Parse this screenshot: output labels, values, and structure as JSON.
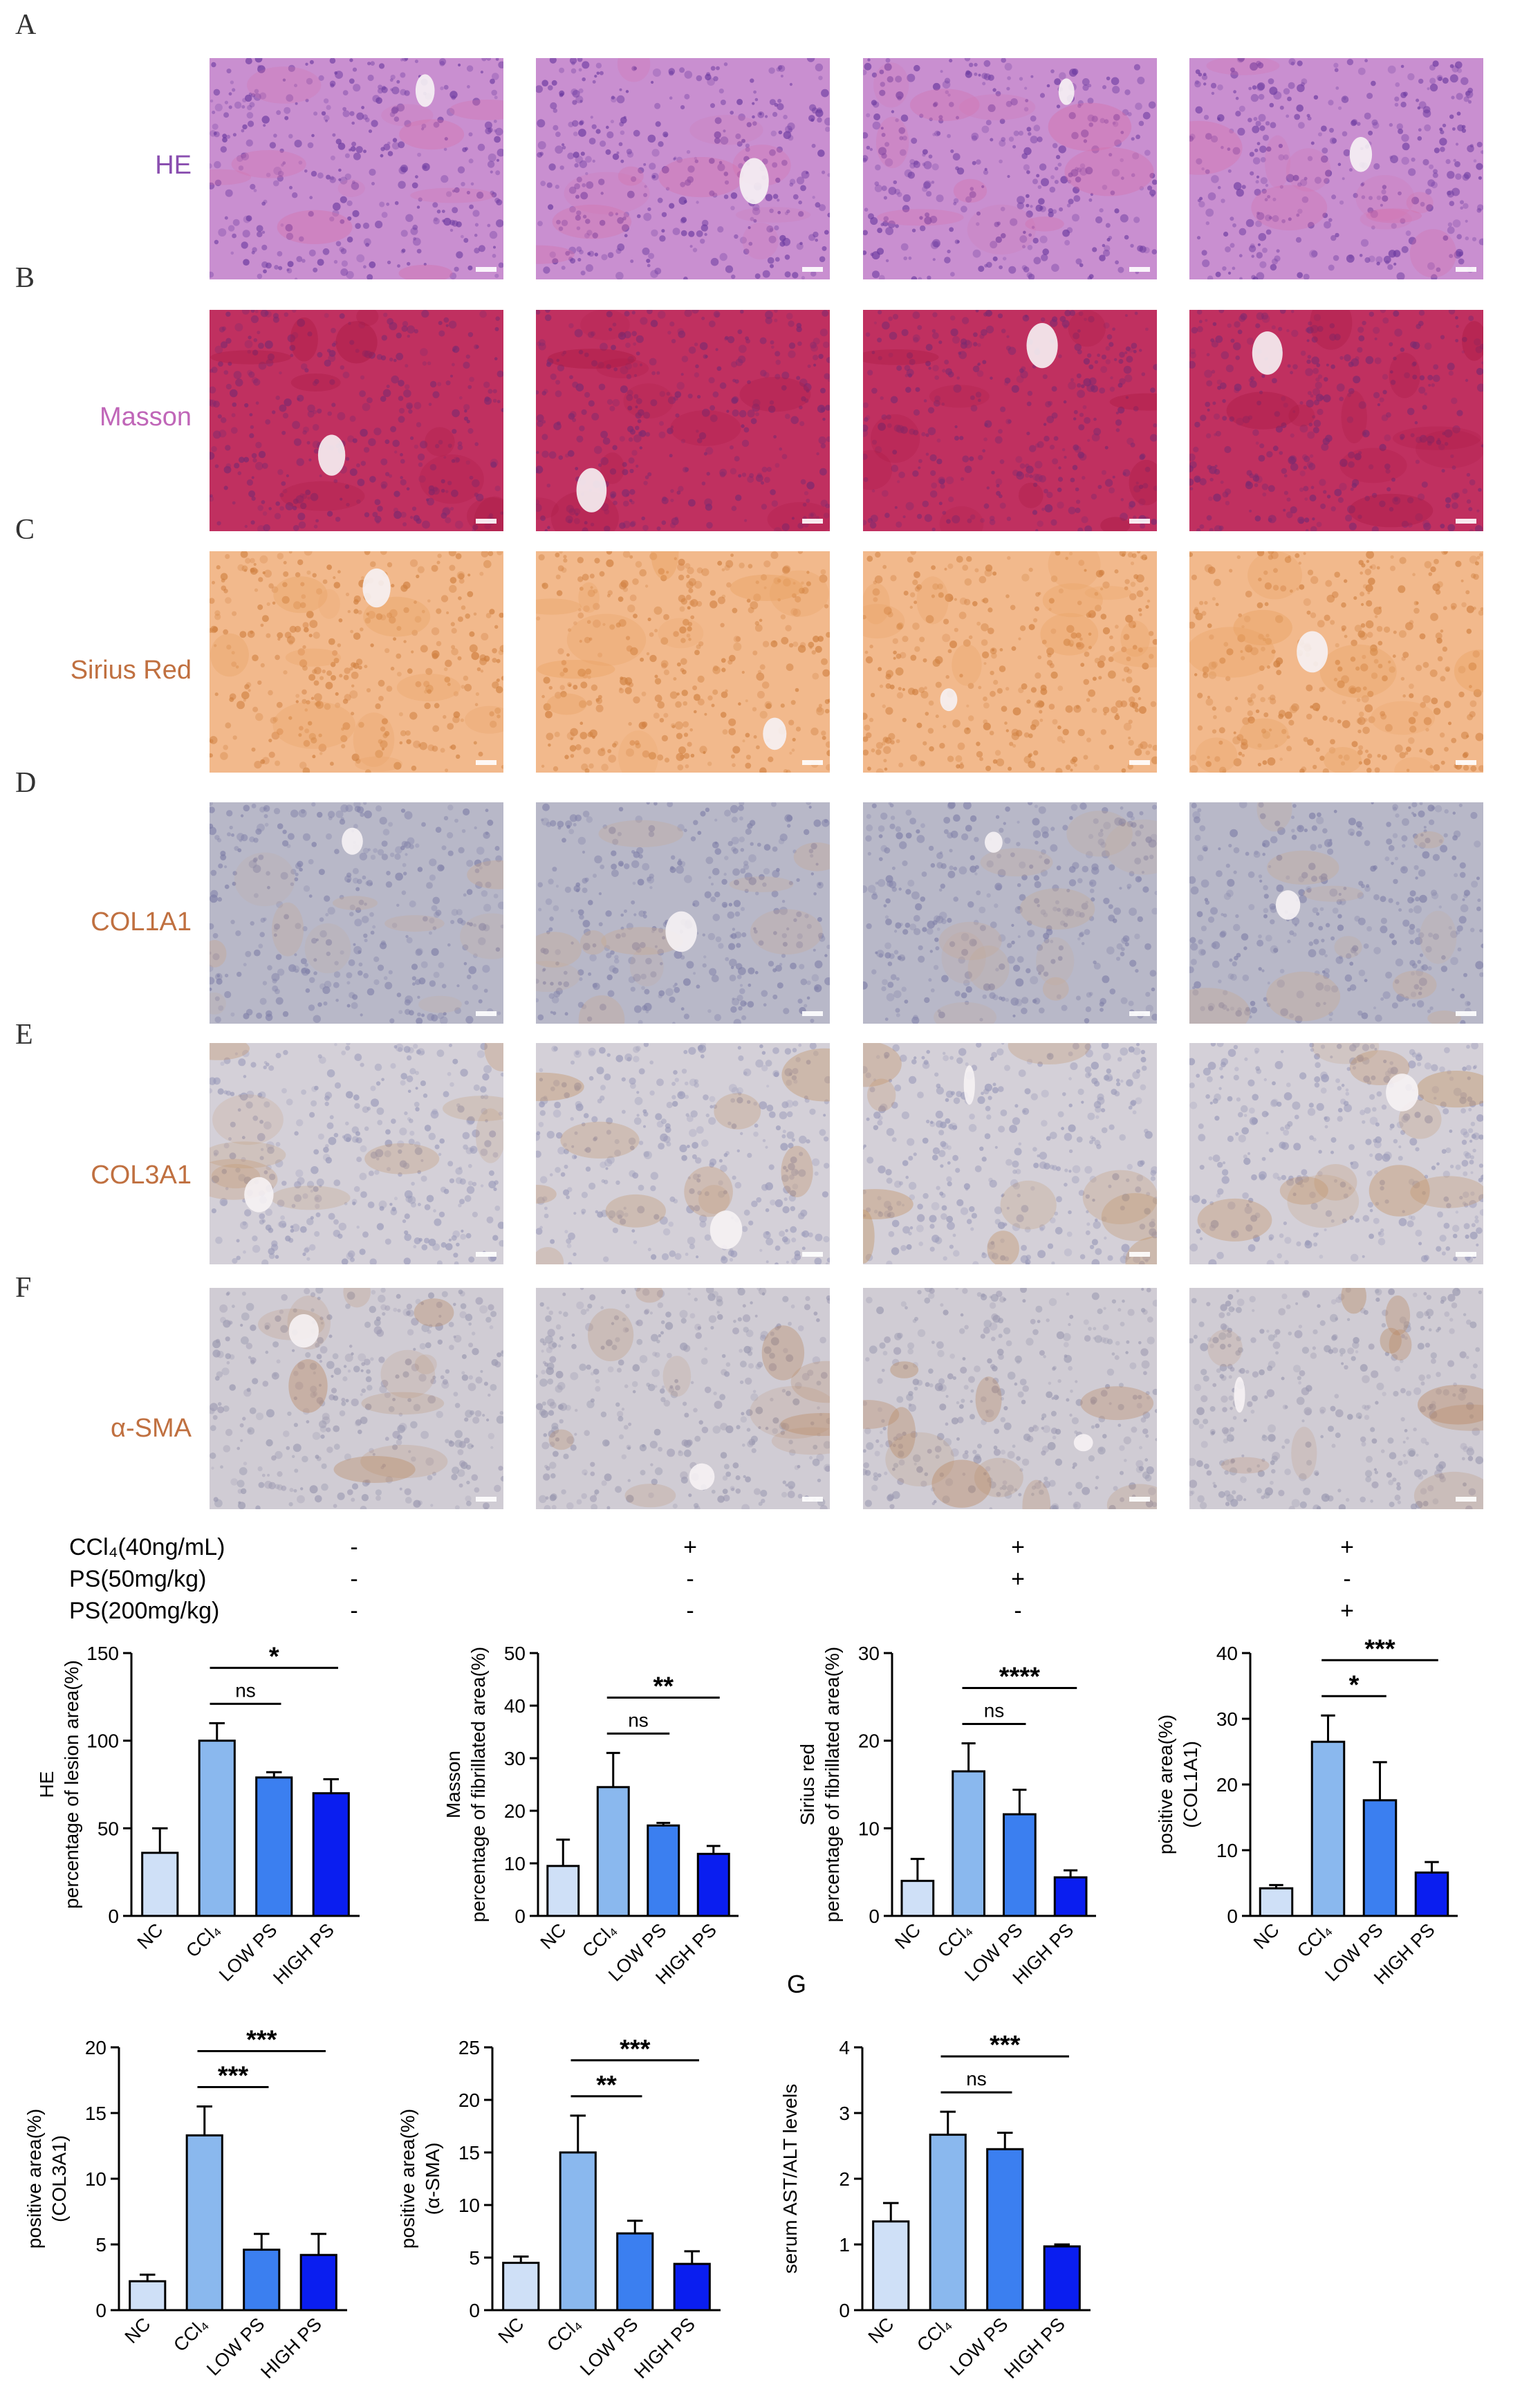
{
  "panel_letters": [
    "A",
    "B",
    "C",
    "D",
    "E",
    "F"
  ],
  "stains": [
    {
      "name": "HE",
      "color": "#8a4fb0",
      "tissue": [
        "#c98fd0",
        "#6b3aa0",
        "#d66fa8"
      ]
    },
    {
      "name": "Masson",
      "color": "#c066b8",
      "tissue": [
        "#c03060",
        "#7a2a70",
        "#a81840"
      ]
    },
    {
      "name": "Sirius Red",
      "color": "#c07040",
      "tissue": [
        "#f2b98c",
        "#d08040",
        "#e8a060"
      ]
    },
    {
      "name": "COL1A1",
      "color": "#c07040",
      "tissue": [
        "#b8b8c8",
        "#8080a8",
        "#c8a890"
      ]
    },
    {
      "name": "COL3A1",
      "color": "#c07040",
      "tissue": [
        "#d4d0d8",
        "#9898b8",
        "#c09060"
      ]
    },
    {
      "name": "α-SMA",
      "color": "#c07040",
      "tissue": [
        "#d0ccd4",
        "#9a98b0",
        "#b88860"
      ]
    }
  ],
  "conditions": {
    "rows": [
      {
        "label": "CCl₄(40ng/mL)",
        "marks": [
          "-",
          "+",
          "+",
          "+"
        ]
      },
      {
        "label": "PS(50mg/kg)",
        "marks": [
          "-",
          "-",
          "+",
          "-"
        ]
      },
      {
        "label": "PS(200mg/kg)",
        "marks": [
          "-",
          "-",
          "-",
          "+"
        ]
      }
    ]
  },
  "g_label": "G",
  "chart_data": [
    {
      "type": "bar",
      "title": "",
      "ylabel": "HE\npercentage of lesion area(%)",
      "categories": [
        "NC",
        "CCl₄",
        "LOW PS",
        "HIGH PS"
      ],
      "values": [
        36,
        100,
        79,
        70
      ],
      "errors": [
        14,
        10,
        3,
        8
      ],
      "ylim": [
        0,
        150
      ],
      "yticks": [
        0,
        50,
        100,
        150
      ],
      "colors": [
        "#cfe0f7",
        "#8ab8ee",
        "#3b7ff0",
        "#0a1ef0"
      ],
      "brackets": [
        {
          "from": 1,
          "to": 2,
          "label": "ns",
          "level": 0
        },
        {
          "from": 1,
          "to": 3,
          "label": "*",
          "level": 1
        }
      ]
    },
    {
      "type": "bar",
      "title": "",
      "ylabel": "Masson\npercentage of fibrillated area(%)",
      "categories": [
        "NC",
        "CCl₄",
        "LOW PS",
        "HIGH PS"
      ],
      "values": [
        9.5,
        24.5,
        17.2,
        11.8
      ],
      "errors": [
        5,
        6.5,
        0.5,
        1.5
      ],
      "ylim": [
        0,
        50
      ],
      "yticks": [
        0,
        10,
        20,
        30,
        40,
        50
      ],
      "colors": [
        "#cfe0f7",
        "#8ab8ee",
        "#3b7ff0",
        "#0a1ef0"
      ],
      "brackets": [
        {
          "from": 1,
          "to": 2,
          "label": "ns",
          "level": 0
        },
        {
          "from": 1,
          "to": 3,
          "label": "**",
          "level": 1
        }
      ]
    },
    {
      "type": "bar",
      "title": "",
      "ylabel": "Sirius red\npercentage of fibrillated area(%)",
      "categories": [
        "NC",
        "CCl₄",
        "LOW PS",
        "HIGH PS"
      ],
      "values": [
        4.0,
        16.5,
        11.6,
        4.4
      ],
      "errors": [
        2.5,
        3.2,
        2.8,
        0.8
      ],
      "ylim": [
        0,
        30
      ],
      "yticks": [
        0,
        10,
        20,
        30
      ],
      "colors": [
        "#cfe0f7",
        "#8ab8ee",
        "#3b7ff0",
        "#0a1ef0"
      ],
      "brackets": [
        {
          "from": 1,
          "to": 2,
          "label": "ns",
          "level": 0
        },
        {
          "from": 1,
          "to": 3,
          "label": "****",
          "level": 1
        }
      ]
    },
    {
      "type": "bar",
      "title": "",
      "ylabel": "positive area(%)\n(COL1A1)",
      "categories": [
        "NC",
        "CCl₄",
        "LOW PS",
        "HIGH PS"
      ],
      "values": [
        4.2,
        26.5,
        17.6,
        6.6
      ],
      "errors": [
        0.5,
        4,
        5.8,
        1.6
      ],
      "ylim": [
        0,
        40
      ],
      "yticks": [
        0,
        10,
        20,
        30,
        40
      ],
      "colors": [
        "#cfe0f7",
        "#8ab8ee",
        "#3b7ff0",
        "#0a1ef0"
      ],
      "brackets": [
        {
          "from": 1,
          "to": 2,
          "label": "*",
          "level": 0
        },
        {
          "from": 1,
          "to": 3,
          "label": "***",
          "level": 1
        }
      ]
    },
    {
      "type": "bar",
      "title": "",
      "ylabel": "positive area(%)\n(COL3A1)",
      "categories": [
        "NC",
        "CCl₄",
        "LOW PS",
        "HIGH PS"
      ],
      "values": [
        2.2,
        13.3,
        4.6,
        4.2
      ],
      "errors": [
        0.5,
        2.2,
        1.2,
        1.6
      ],
      "ylim": [
        0,
        20
      ],
      "yticks": [
        0,
        5,
        10,
        15,
        20
      ],
      "colors": [
        "#cfe0f7",
        "#8ab8ee",
        "#3b7ff0",
        "#0a1ef0"
      ],
      "brackets": [
        {
          "from": 1,
          "to": 2,
          "label": "***",
          "level": 0
        },
        {
          "from": 1,
          "to": 3,
          "label": "***",
          "level": 1
        }
      ]
    },
    {
      "type": "bar",
      "title": "",
      "ylabel": "positive area(%)\n(α-SMA)",
      "categories": [
        "NC",
        "CCl₄",
        "LOW PS",
        "HIGH PS"
      ],
      "values": [
        4.5,
        15,
        7.3,
        4.4
      ],
      "errors": [
        0.6,
        3.5,
        1.2,
        1.2
      ],
      "ylim": [
        0,
        25
      ],
      "yticks": [
        0,
        5,
        10,
        15,
        20,
        25
      ],
      "colors": [
        "#cfe0f7",
        "#8ab8ee",
        "#3b7ff0",
        "#0a1ef0"
      ],
      "brackets": [
        {
          "from": 1,
          "to": 2,
          "label": "**",
          "level": 0
        },
        {
          "from": 1,
          "to": 3,
          "label": "***",
          "level": 1
        }
      ]
    },
    {
      "type": "bar",
      "title": "",
      "ylabel": "serum AST/ALT levels",
      "categories": [
        "NC",
        "CCl₄",
        "LOW PS",
        "HIGH PS"
      ],
      "values": [
        1.35,
        2.67,
        2.45,
        0.97
      ],
      "errors": [
        0.28,
        0.35,
        0.25,
        0.03
      ],
      "ylim": [
        0,
        4
      ],
      "yticks": [
        0,
        1,
        2,
        3,
        4
      ],
      "colors": [
        "#cfe0f7",
        "#8ab8ee",
        "#3b7ff0",
        "#0a1ef0"
      ],
      "brackets": [
        {
          "from": 1,
          "to": 2,
          "label": "ns",
          "level": 0
        },
        {
          "from": 1,
          "to": 3,
          "label": "***",
          "level": 1
        }
      ]
    }
  ]
}
